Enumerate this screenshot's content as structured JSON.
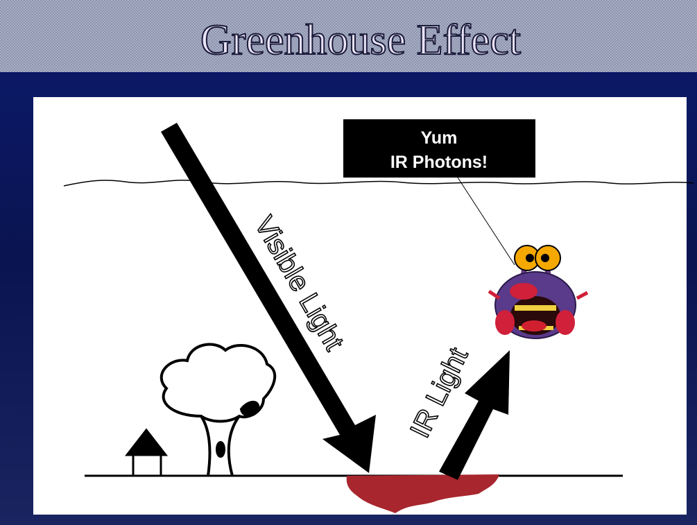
{
  "title": "Greenhouse Effect",
  "callout": {
    "lines": [
      "Yum",
      "IR Photons!"
    ]
  },
  "labels": {
    "visible": "Visible Light",
    "ir": "IR Light"
  }
}
